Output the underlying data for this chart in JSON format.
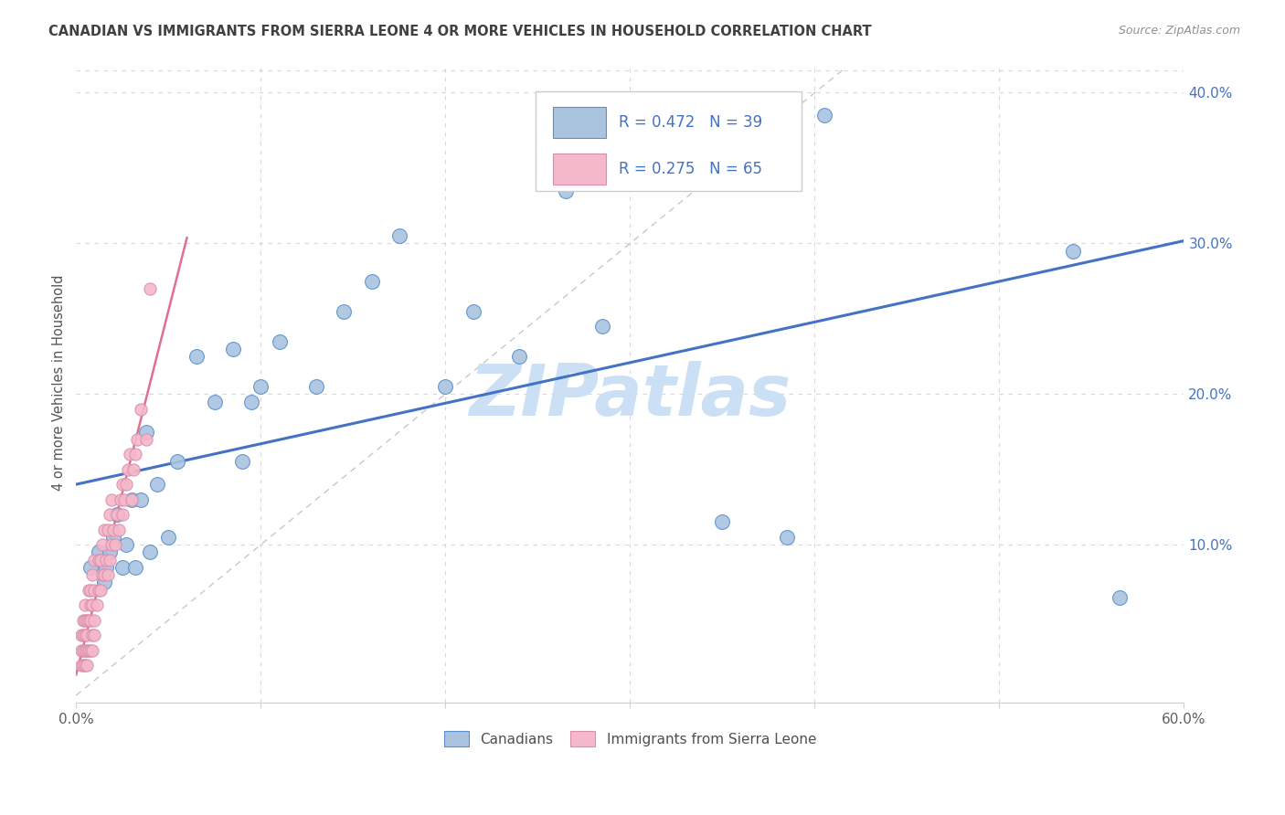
{
  "title": "CANADIAN VS IMMIGRANTS FROM SIERRA LEONE 4 OR MORE VEHICLES IN HOUSEHOLD CORRELATION CHART",
  "source": "Source: ZipAtlas.com",
  "ylabel": "4 or more Vehicles in Household",
  "xlim": [
    0.0,
    0.6
  ],
  "ylim": [
    -0.005,
    0.42
  ],
  "xticks": [
    0.0,
    0.1,
    0.2,
    0.3,
    0.4,
    0.5,
    0.6
  ],
  "xtick_labels": [
    "0.0%",
    "",
    "",
    "",
    "",
    "",
    "60.0%"
  ],
  "yticks_right": [
    0.1,
    0.2,
    0.3,
    0.4
  ],
  "canadian_R": 0.472,
  "canadian_N": 39,
  "sierra_leone_R": 0.275,
  "sierra_leone_N": 65,
  "canadian_color": "#aac4e0",
  "canadian_edge_color": "#5b8fc9",
  "canadian_line_color": "#4472c4",
  "sierra_leone_color": "#f5b8ca",
  "sierra_leone_edge_color": "#d98faa",
  "sierra_leone_line_color": "#e07090",
  "legend_text_color": "#4472c4",
  "title_color": "#404040",
  "source_color": "#909090",
  "watermark_color": "#cce0f5",
  "ref_line_color": "#c8c8c8",
  "grid_color": "#d8d8d8",
  "canadian_x": [
    0.008,
    0.012,
    0.015,
    0.016,
    0.018,
    0.02,
    0.022,
    0.025,
    0.027,
    0.03,
    0.032,
    0.035,
    0.038,
    0.04,
    0.044,
    0.05,
    0.055,
    0.065,
    0.075,
    0.085,
    0.09,
    0.095,
    0.1,
    0.11,
    0.13,
    0.145,
    0.16,
    0.175,
    0.2,
    0.215,
    0.24,
    0.265,
    0.285,
    0.3,
    0.35,
    0.385,
    0.405,
    0.54,
    0.565
  ],
  "canadian_y": [
    0.085,
    0.095,
    0.075,
    0.085,
    0.095,
    0.105,
    0.12,
    0.085,
    0.1,
    0.13,
    0.085,
    0.13,
    0.175,
    0.095,
    0.14,
    0.105,
    0.155,
    0.225,
    0.195,
    0.23,
    0.155,
    0.195,
    0.205,
    0.235,
    0.205,
    0.255,
    0.275,
    0.305,
    0.205,
    0.255,
    0.225,
    0.335,
    0.245,
    0.365,
    0.115,
    0.105,
    0.385,
    0.295,
    0.065
  ],
  "sierra_leone_x": [
    0.003,
    0.003,
    0.003,
    0.004,
    0.004,
    0.004,
    0.004,
    0.005,
    0.005,
    0.005,
    0.005,
    0.005,
    0.006,
    0.006,
    0.006,
    0.006,
    0.007,
    0.007,
    0.007,
    0.008,
    0.008,
    0.008,
    0.008,
    0.009,
    0.009,
    0.009,
    0.009,
    0.01,
    0.01,
    0.01,
    0.01,
    0.011,
    0.012,
    0.012,
    0.013,
    0.013,
    0.014,
    0.014,
    0.015,
    0.015,
    0.016,
    0.017,
    0.017,
    0.018,
    0.018,
    0.019,
    0.019,
    0.02,
    0.021,
    0.022,
    0.023,
    0.024,
    0.025,
    0.025,
    0.026,
    0.027,
    0.028,
    0.029,
    0.03,
    0.031,
    0.032,
    0.033,
    0.035,
    0.038,
    0.04
  ],
  "sierra_leone_y": [
    0.02,
    0.03,
    0.04,
    0.02,
    0.03,
    0.04,
    0.05,
    0.02,
    0.03,
    0.04,
    0.05,
    0.06,
    0.02,
    0.03,
    0.04,
    0.05,
    0.03,
    0.05,
    0.07,
    0.03,
    0.05,
    0.06,
    0.07,
    0.03,
    0.04,
    0.06,
    0.08,
    0.04,
    0.05,
    0.07,
    0.09,
    0.06,
    0.07,
    0.09,
    0.07,
    0.09,
    0.08,
    0.1,
    0.08,
    0.11,
    0.09,
    0.08,
    0.11,
    0.09,
    0.12,
    0.1,
    0.13,
    0.11,
    0.1,
    0.12,
    0.11,
    0.13,
    0.12,
    0.14,
    0.13,
    0.14,
    0.15,
    0.16,
    0.13,
    0.15,
    0.16,
    0.17,
    0.19,
    0.17,
    0.27
  ]
}
